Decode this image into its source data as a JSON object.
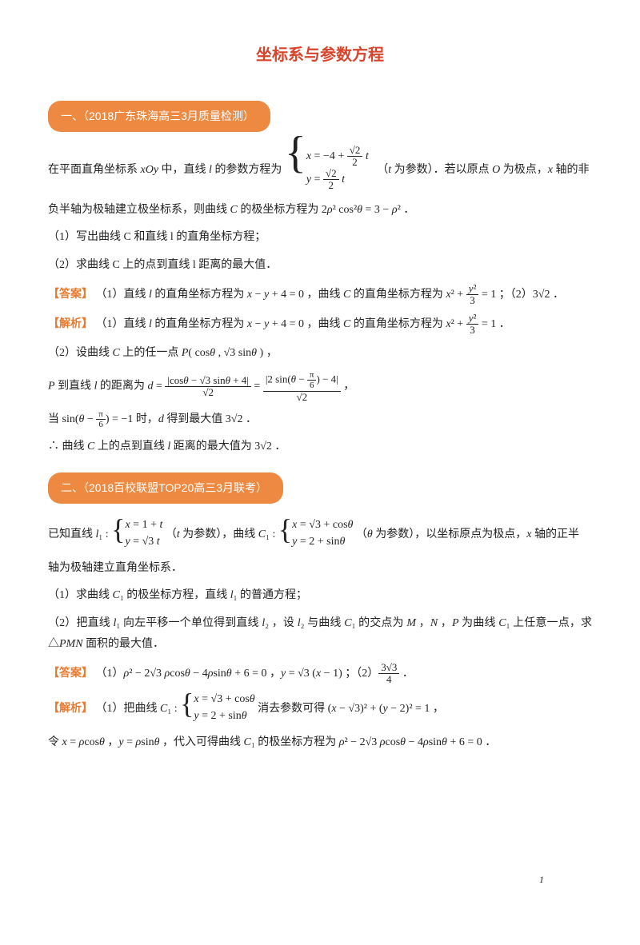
{
  "title": "坐标系与参数方程",
  "q1": {
    "badge": "一、（2018广东珠海高三3月质量检测）",
    "intro1": "在平面直角坐标系 xOy 中，直线 l 的参数方程为",
    "param1_row1": "x = −4 + (√2 / 2) t",
    "param1_row2": "y = (√2 / 2) t",
    "intro1_tail": "（t 为参数）．若以原点 O 为极点，x 轴的非",
    "intro2": "负半轴为极轴建立极坐标系，则曲线 C 的极坐标方程为 2ρ² cos²θ = 3 − ρ² ．",
    "sub1": "（1）写出曲线 C 和直线 l 的直角坐标方程；",
    "sub2": "（2）求曲线 C 上的点到直线 l 距离的最大值．",
    "ans_label": "【答案】",
    "ans": "（1）直线 l 的直角坐标方程为 x − y + 4 = 0 ，曲线 C 的直角坐标方程为 x² + y²/3 = 1 ；（2）3√2 ．",
    "sol_label": "【解析】",
    "sol1": "（1）直线 l 的直角坐标方程为 x − y + 4 = 0 ，曲线 C 的直角坐标方程为 x² + y²/3 = 1 ．",
    "sol2": "（2）设曲线 C 上的任一点 P( cosθ , √3 sinθ )，",
    "sol3a": "P 到直线 l 的距离为 d =",
    "sol3_num1": "|cosθ − √3 sinθ + 4|",
    "sol3_den": "√2",
    "sol3_num2": "|2 sin(θ − π/6) − 4|",
    "sol3c": "，",
    "sol4": "当 sin(θ − π/6) = −1 时，d 得到最大值 3√2 ．",
    "sol5": "∴ 曲线 C 上的点到直线 l 距离的最大值为 3√2 ．"
  },
  "q2": {
    "badge": "二、（2018百校联盟TOP20高三3月联考）",
    "intro1a": "已知直线 l₁ :",
    "l1_row1": "x = 1 + t",
    "l1_row2": "y = √3 t",
    "intro1b": "（t 为参数），曲线 C₁ :",
    "c1_row1": "x = √3 + cosθ",
    "c1_row2": "y = 2 + sinθ",
    "intro1c": "（θ 为参数），以坐标原点为极点，x 轴的正半",
    "intro2": "轴为极轴建立直角坐标系．",
    "sub1": "（1）求曲线 C₁ 的极坐标方程，直线 l₁ 的普通方程；",
    "sub2": "（2）把直线 l₁ 向左平移一个单位得到直线 l₂ ，设 l₂ 与曲线 C₁ 的交点为 M，N，P 为曲线 C₁ 上任意一点，求 △PMN 面积的最大值．",
    "ans_label": "【答案】",
    "ans": "（1）ρ² − 2√3 ρcosθ − 4ρsinθ + 6 = 0 ，y = √3 (x − 1) ；（2）3√3/4 ．",
    "sol_label": "【解析】",
    "sol1a": "（1）把曲线 C₁ :",
    "sol1b": "消去参数可得 (x − √3)² + (y − 2)² = 1 ，",
    "sol2": "令 x = ρcosθ ，y = ρsinθ ，代入可得曲线 C₁ 的极坐标方程为 ρ² − 2√3 ρcosθ − 4ρsinθ + 6 = 0 ．"
  },
  "pagenum": "1",
  "colors": {
    "title": "#d9452c",
    "badge_bg": "#ed8940",
    "badge_fg": "#ffffff",
    "label": "#e77b32",
    "text": "#222222"
  }
}
